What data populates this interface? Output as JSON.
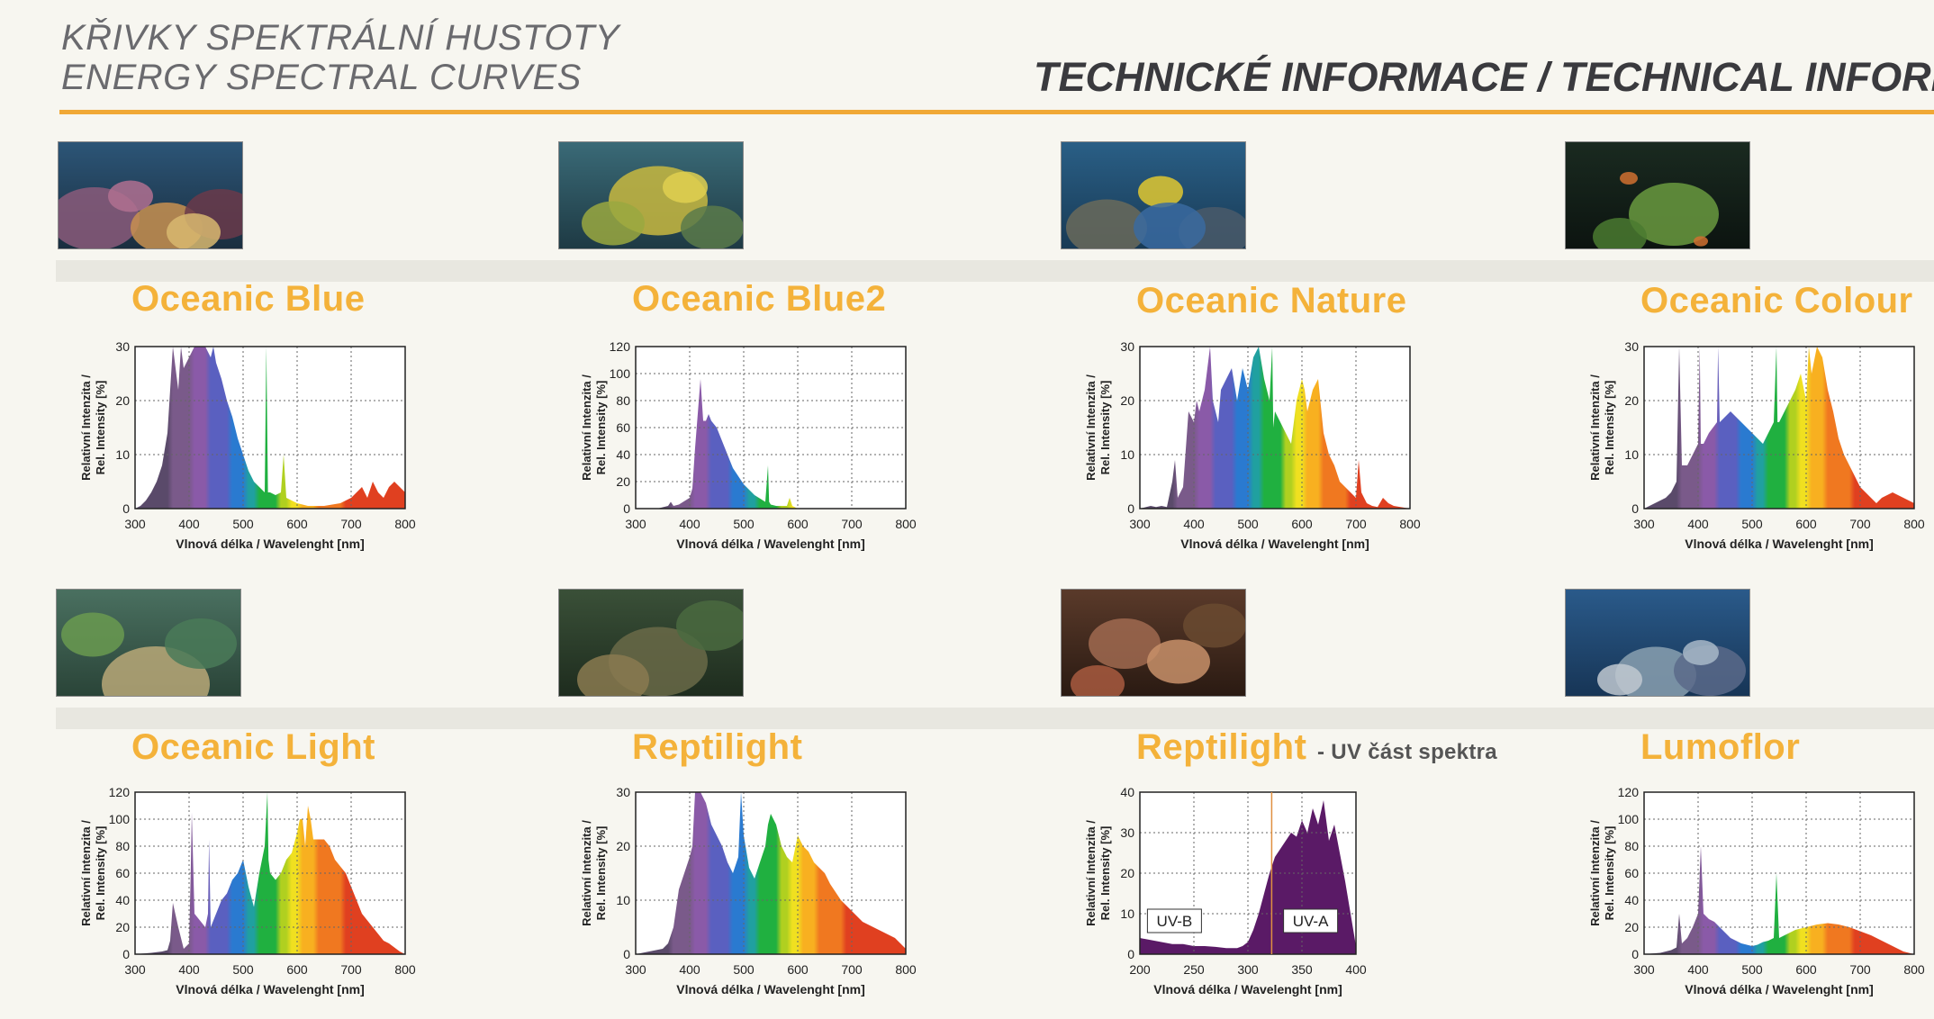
{
  "header": {
    "title_cz": "KŘIVKY SPEKTRÁLNÍ HUSTOTY",
    "title_en": "ENERGY SPECTRAL CURVES",
    "right_title": "TECHNICKÉ INFORMACE / TECHNICAL INFORMATI"
  },
  "photos": [
    {
      "scene": "coral-reef-purple"
    },
    {
      "scene": "coral-reef-yellow"
    },
    {
      "scene": "reef-fish-yellow"
    },
    {
      "scene": "aquarium-orange-fish"
    },
    {
      "scene": "planted-aquarium"
    },
    {
      "scene": "iguana-lizard"
    },
    {
      "scene": "snake-on-person"
    },
    {
      "scene": "coral-reef-blue"
    }
  ],
  "colors": {
    "title": "#f4b23a",
    "rule": "#f0a836"
  },
  "chart_data": [
    {
      "type": "area",
      "title": "Oceanic Blue",
      "ylabel": "Relativní Intenzita / Rel. Intensity [%]",
      "xlabel": "Vlnová délka / Wavelenght [nm]",
      "xlim": [
        300,
        800
      ],
      "ylim": [
        0,
        30
      ],
      "xticks": [
        "300",
        "400",
        "500",
        "600",
        "700",
        "800"
      ],
      "yticks": [
        "0",
        "10",
        "20",
        "30"
      ],
      "grid": true,
      "fill": "spectrum",
      "x": [
        300,
        310,
        320,
        330,
        340,
        350,
        360,
        370,
        380,
        385,
        390,
        400,
        410,
        420,
        430,
        440,
        445,
        450,
        460,
        470,
        480,
        490,
        500,
        510,
        520,
        530,
        540,
        543,
        546,
        550,
        560,
        570,
        575,
        580,
        590,
        600,
        620,
        650,
        680,
        700,
        710,
        720,
        730,
        740,
        750,
        760,
        770,
        780,
        790,
        800
      ],
      "y": [
        0,
        0.5,
        1.5,
        3,
        5,
        8,
        14,
        30,
        22,
        30,
        26,
        28,
        30,
        30,
        30,
        28,
        30,
        27,
        24,
        20,
        17,
        13,
        10,
        7,
        5,
        4,
        3,
        30,
        3,
        3,
        2.5,
        3,
        10,
        2,
        1.5,
        1,
        0.5,
        0.5,
        1,
        2,
        3,
        4,
        2,
        5,
        3,
        2,
        4,
        5,
        4,
        3
      ]
    },
    {
      "type": "area",
      "title": "Oceanic Blue2",
      "ylabel": "Relativní Intenzita / Rel. Intensity [%]",
      "xlabel": "Vlnová délka / Wavelenght [nm]",
      "xlim": [
        300,
        800
      ],
      "ylim": [
        0,
        120
      ],
      "xticks": [
        "300",
        "400",
        "500",
        "600",
        "700",
        "800"
      ],
      "yticks": [
        "0",
        "20",
        "40",
        "60",
        "80",
        "100",
        "120"
      ],
      "grid": true,
      "fill": "spectrum",
      "x": [
        300,
        340,
        360,
        365,
        370,
        380,
        400,
        405,
        410,
        420,
        425,
        430,
        435,
        440,
        450,
        460,
        470,
        480,
        500,
        520,
        540,
        545,
        547,
        550,
        560,
        580,
        585,
        590,
        600,
        800
      ],
      "y": [
        0,
        0,
        2,
        5,
        2,
        3,
        8,
        15,
        45,
        96,
        65,
        65,
        70,
        65,
        60,
        50,
        40,
        30,
        18,
        10,
        5,
        32,
        5,
        3,
        2,
        2,
        8,
        2,
        0,
        0
      ]
    },
    {
      "type": "area",
      "title": "Oceanic Nature",
      "ylabel": "Relativní Intenzita / Rel. Intensity [%]",
      "xlabel": "Vlnová délka / Wavelenght [nm]",
      "xlim": [
        300,
        800
      ],
      "ylim": [
        0,
        30
      ],
      "xticks": [
        "300",
        "400",
        "500",
        "600",
        "700",
        "800"
      ],
      "yticks": [
        "0",
        "10",
        "20",
        "30"
      ],
      "grid": true,
      "fill": "spectrum",
      "x": [
        300,
        320,
        330,
        340,
        350,
        360,
        365,
        370,
        380,
        390,
        400,
        405,
        410,
        420,
        430,
        435,
        440,
        445,
        450,
        460,
        470,
        480,
        490,
        500,
        510,
        520,
        530,
        540,
        545,
        547,
        550,
        560,
        570,
        580,
        590,
        600,
        605,
        610,
        615,
        620,
        630,
        640,
        650,
        660,
        670,
        680,
        690,
        700,
        705,
        710,
        720,
        730,
        740,
        750,
        760,
        770,
        800
      ],
      "y": [
        0,
        0.5,
        0.3,
        0.5,
        0.3,
        5,
        9,
        2,
        4,
        18,
        16,
        20,
        18,
        22,
        30,
        20,
        18,
        16,
        22,
        24,
        26,
        20,
        26,
        22,
        28,
        30,
        24,
        20,
        30,
        15,
        18,
        16,
        14,
        12,
        20,
        24,
        22,
        18,
        20,
        22,
        24,
        14,
        10,
        8,
        5,
        4,
        3,
        2,
        9,
        3,
        1,
        0.5,
        0.3,
        2,
        1,
        0.5,
        0
      ]
    },
    {
      "type": "area",
      "title": "Oceanic Colour",
      "ylabel": "Relativní Intenzita / Rel. Intensity [%]",
      "xlabel": "Vlnová délka / Wavelenght [nm]",
      "xlim": [
        300,
        800
      ],
      "ylim": [
        0,
        30
      ],
      "xticks": [
        "300",
        "400",
        "500",
        "600",
        "700",
        "800"
      ],
      "yticks": [
        "0",
        "10",
        "20",
        "30"
      ],
      "grid": true,
      "fill": "spectrum",
      "x": [
        300,
        320,
        340,
        350,
        360,
        365,
        370,
        380,
        390,
        400,
        403,
        405,
        410,
        420,
        435,
        437,
        440,
        450,
        460,
        470,
        480,
        490,
        500,
        510,
        520,
        530,
        540,
        545,
        547,
        550,
        560,
        580,
        590,
        600,
        605,
        610,
        620,
        630,
        640,
        650,
        660,
        670,
        680,
        690,
        700,
        710,
        720,
        730,
        740,
        760,
        780,
        800
      ],
      "y": [
        0,
        1,
        2,
        3,
        5,
        30,
        8,
        8,
        10,
        12,
        30,
        12,
        12,
        14,
        16,
        30,
        16,
        17,
        18,
        17,
        16,
        15,
        14,
        13,
        12,
        14,
        16,
        30,
        16,
        16,
        18,
        22,
        25,
        20,
        30,
        25,
        30,
        28,
        22,
        18,
        13,
        10,
        8,
        6,
        4,
        3,
        2,
        1,
        2,
        3,
        2,
        1
      ]
    },
    {
      "type": "area",
      "title": "Oceanic Light",
      "ylabel": "Relativní Intenzita / Rel. Intensity [%]",
      "xlabel": "Vlnová délka / Wavelenght [nm]",
      "xlim": [
        300,
        800
      ],
      "ylim": [
        0,
        120
      ],
      "xticks": [
        "300",
        "400",
        "500",
        "600",
        "700",
        "800"
      ],
      "yticks": [
        "0",
        "20",
        "40",
        "60",
        "80",
        "100",
        "120"
      ],
      "grid": true,
      "fill": "spectrum",
      "x": [
        300,
        330,
        350,
        360,
        365,
        370,
        380,
        390,
        400,
        403,
        405,
        410,
        420,
        430,
        435,
        437,
        440,
        450,
        460,
        470,
        480,
        490,
        500,
        510,
        520,
        530,
        540,
        545,
        547,
        550,
        560,
        570,
        580,
        590,
        600,
        605,
        610,
        615,
        620,
        625,
        630,
        640,
        650,
        660,
        670,
        680,
        690,
        700,
        710,
        720,
        730,
        740,
        750,
        760,
        770,
        780,
        790,
        800
      ],
      "y": [
        0,
        1,
        2,
        3,
        10,
        38,
        20,
        4,
        8,
        60,
        105,
        30,
        25,
        20,
        30,
        85,
        20,
        30,
        40,
        45,
        55,
        60,
        70,
        50,
        35,
        60,
        80,
        120,
        70,
        60,
        55,
        60,
        70,
        75,
        90,
        100,
        100,
        80,
        110,
        100,
        85,
        85,
        85,
        80,
        70,
        65,
        60,
        50,
        40,
        30,
        25,
        20,
        15,
        10,
        8,
        5,
        2,
        0
      ]
    },
    {
      "type": "area",
      "title": "Reptilight",
      "ylabel": "Relativní Intenzita / Rel. Intensity [%]",
      "xlabel": "Vlnová délka / Wavelenght [nm]",
      "xlim": [
        300,
        800
      ],
      "ylim": [
        0,
        30
      ],
      "xticks": [
        "300",
        "400",
        "500",
        "600",
        "700",
        "800"
      ],
      "yticks": [
        "0",
        "10",
        "20",
        "30"
      ],
      "grid": true,
      "fill": "spectrum",
      "x": [
        300,
        350,
        360,
        370,
        380,
        390,
        400,
        405,
        410,
        420,
        430,
        440,
        450,
        460,
        470,
        480,
        490,
        495,
        500,
        510,
        520,
        530,
        540,
        545,
        550,
        560,
        570,
        580,
        590,
        600,
        610,
        620,
        630,
        640,
        650,
        660,
        680,
        700,
        720,
        740,
        760,
        780,
        790,
        800
      ],
      "y": [
        0,
        1,
        2,
        5,
        12,
        15,
        18,
        20,
        30,
        30,
        28,
        24,
        22,
        20,
        17,
        15,
        18,
        30,
        22,
        16,
        14,
        17,
        20,
        24,
        26,
        24,
        20,
        18,
        17,
        22,
        20,
        19,
        17,
        16,
        15,
        13,
        10,
        8,
        6,
        5,
        4,
        3,
        2,
        1
      ]
    },
    {
      "type": "area",
      "title": "Reptilight",
      "subtitle": "- UV část spektra",
      "ylabel": "Relativní Intenzita / Rel. Intensity [%]",
      "xlabel": "Vlnová délka / Wavelenght [nm]",
      "xlim": [
        200,
        400
      ],
      "ylim": [
        0,
        40
      ],
      "xticks": [
        "200",
        "250",
        "300",
        "350",
        "400"
      ],
      "yticks": [
        "0",
        "10",
        "20",
        "30",
        "40"
      ],
      "grid": true,
      "fill": "#5a1a66",
      "annotations": [
        "UV-B",
        "UV-A"
      ],
      "x": [
        200,
        210,
        220,
        230,
        240,
        250,
        260,
        270,
        280,
        290,
        295,
        300,
        305,
        310,
        315,
        320,
        325,
        330,
        335,
        340,
        345,
        350,
        355,
        360,
        365,
        370,
        375,
        380,
        385,
        390,
        395,
        400
      ],
      "y": [
        4,
        3.5,
        3,
        2.5,
        2.5,
        2,
        2,
        1.8,
        1.5,
        1.5,
        2,
        3,
        6,
        10,
        15,
        20,
        24,
        26,
        28,
        30,
        29,
        33,
        30,
        36,
        32,
        38,
        28,
        32,
        25,
        18,
        10,
        2
      ]
    },
    {
      "type": "area",
      "title": "Lumoflor",
      "ylabel": "Relativní Intenzita / Rel. Intensity [%]",
      "xlabel": "Vlnová délka / Wavelenght [nm]",
      "xlim": [
        300,
        800
      ],
      "ylim": [
        0,
        120
      ],
      "xticks": [
        "300",
        "400",
        "500",
        "600",
        "700",
        "800"
      ],
      "yticks": [
        "0",
        "20",
        "40",
        "60",
        "80",
        "100",
        "120"
      ],
      "grid": true,
      "fill": "spectrum",
      "x": [
        300,
        330,
        350,
        360,
        365,
        370,
        380,
        390,
        400,
        405,
        410,
        420,
        430,
        440,
        450,
        460,
        470,
        480,
        490,
        500,
        510,
        520,
        530,
        540,
        545,
        550,
        560,
        580,
        600,
        620,
        640,
        660,
        680,
        700,
        720,
        740,
        760,
        780,
        800
      ],
      "y": [
        0,
        1,
        3,
        5,
        30,
        8,
        12,
        20,
        30,
        80,
        30,
        26,
        24,
        20,
        16,
        12,
        10,
        8,
        7,
        6,
        7,
        9,
        10,
        12,
        60,
        12,
        14,
        18,
        20,
        22,
        23,
        22,
        20,
        17,
        14,
        10,
        6,
        2,
        0
      ]
    }
  ]
}
